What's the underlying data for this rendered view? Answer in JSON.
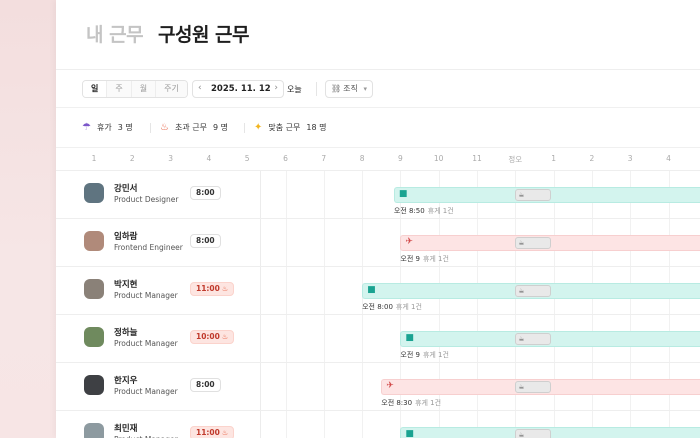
{
  "tabs": {
    "mine": "내 근무",
    "team": "구성원 근무"
  },
  "toolbar": {
    "views": [
      "일",
      "주",
      "월",
      "주기"
    ],
    "date": "2025. 11. 12",
    "prev_icon": "chevron-left-icon",
    "next_icon": "chevron-right-icon",
    "today": "오늘",
    "org_label": "조직",
    "org_icon": "org-chart-icon"
  },
  "summary": [
    {
      "icon": "umbrella-icon",
      "label": "휴가",
      "count": "3 명",
      "color": "#7b57c9"
    },
    {
      "icon": "fire-icon",
      "label": "초과 근무",
      "count": "9 명",
      "color": "#e55b3c"
    },
    {
      "icon": "sparkle-icon",
      "label": "맞춤 근무",
      "count": "18 명",
      "color": "#f2b520"
    }
  ],
  "timeline": {
    "hours": [
      "1",
      "2",
      "3",
      "4",
      "5",
      "6",
      "7",
      "8",
      "9",
      "10",
      "11",
      "정오",
      "1",
      "2",
      "3",
      "4"
    ]
  },
  "members": [
    {
      "name": "강민서",
      "role": "Product Designer",
      "hours": "8:00",
      "overtime": false,
      "bar_type": "work",
      "start_hour": 8.83,
      "caption": "오전 8:50",
      "break_label": "휴게 1건",
      "avatar_color": "#5f7480"
    },
    {
      "name": "임하람",
      "role": "Frontend Engineer",
      "hours": "8:00",
      "overtime": false,
      "bar_type": "trip",
      "start_hour": 9.0,
      "caption": "오전 9",
      "break_label": "휴게 1건",
      "avatar_color": "#b08a7a"
    },
    {
      "name": "박지현",
      "role": "Product Manager",
      "hours": "11:00",
      "overtime": true,
      "bar_type": "work",
      "start_hour": 8.0,
      "caption": "오전 8:00",
      "break_label": "휴게 1건",
      "avatar_color": "#8a8178"
    },
    {
      "name": "정하늘",
      "role": "Product Manager",
      "hours": "10:00",
      "overtime": true,
      "bar_type": "work",
      "start_hour": 9.0,
      "caption": "오전 9",
      "break_label": "휴게 1건",
      "avatar_color": "#6f8a5e"
    },
    {
      "name": "한지우",
      "role": "Product Manager",
      "hours": "8:00",
      "overtime": false,
      "bar_type": "trip",
      "start_hour": 8.5,
      "caption": "오전 8:30",
      "break_label": "휴게 1건",
      "avatar_color": "#3e4044"
    },
    {
      "name": "최민재",
      "role": "Product Manager",
      "hours": "11:00",
      "overtime": true,
      "bar_type": "work",
      "start_hour": 9.0,
      "caption": "",
      "break_label": "",
      "avatar_color": "#8d9aa0"
    }
  ],
  "colors": {
    "work": "#d3f4ee",
    "trip": "#fde4e4",
    "overtime": "#fde5e1"
  }
}
